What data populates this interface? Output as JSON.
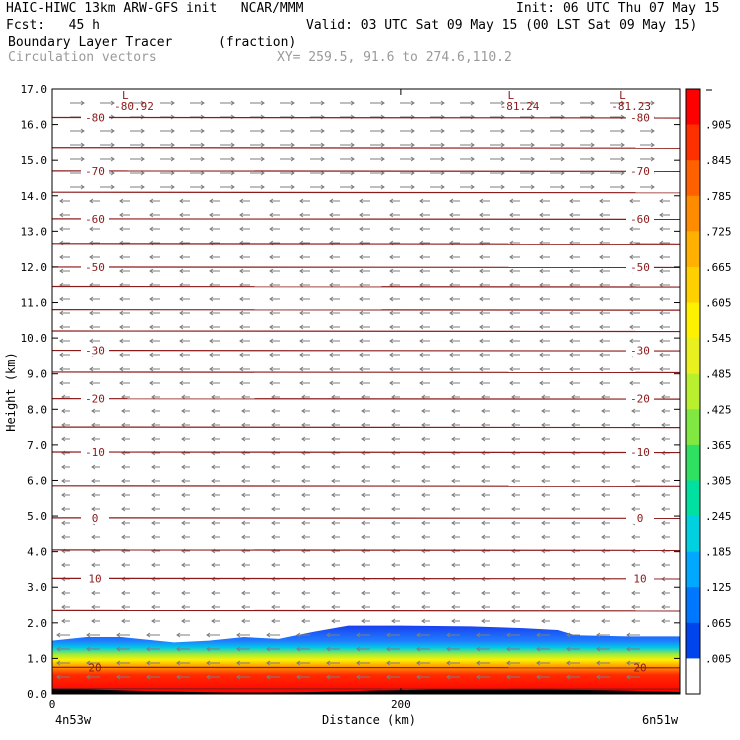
{
  "header": {
    "line1_left": "HAIC-HIWC 13km ARW-GFS init   NCAR/MMM",
    "line1_right": "Init: 06 UTC Thu 07 May 15",
    "line2_left": "Fcst:   45 h",
    "line2_right": "Valid: 03 UTC Sat 09 May 15 (00 LST Sat 09 May 15)",
    "line3_left": "Boundary Layer Tracer",
    "line3_mid": "(fraction)",
    "line4_left": "Circulation vectors",
    "line4_mid": "XY= 259.5, 91.6 to 274.6,110.2"
  },
  "chart_data": {
    "type": "heatmap",
    "ylabel": "Height (km)",
    "xlabel": "Distance (km)",
    "x_endpoints": [
      "4n53w",
      "6n51w"
    ],
    "ylim": [
      0,
      17
    ],
    "xlim": [
      0,
      360
    ],
    "y_ticks": [
      "0.0",
      "1.0",
      "2.0",
      "3.0",
      "4.0",
      "5.0",
      "6.0",
      "7.0",
      "8.0",
      "9.0",
      "10.0",
      "11.0",
      "12.0",
      "13.0",
      "14.0",
      "15.0",
      "16.0",
      "17.0"
    ],
    "x_ticks": [
      "0",
      "200"
    ],
    "colorbar": {
      "labels": [
        ".005",
        ".065",
        ".125",
        ".185",
        ".245",
        ".305",
        ".365",
        ".425",
        ".485",
        ".545",
        ".605",
        ".665",
        ".725",
        ".785",
        ".845",
        ".905"
      ],
      "colors": [
        "#ffffff",
        "#0044ee",
        "#0077ff",
        "#00a8ff",
        "#00d0e0",
        "#00e0a0",
        "#30e060",
        "#80e840",
        "#b8f030",
        "#e8f020",
        "#fff000",
        "#ffd000",
        "#ffb000",
        "#ff8c00",
        "#ff6000",
        "#ff3000",
        "#ff0000"
      ]
    },
    "tracer_top_km": [
      [
        0,
        1.5
      ],
      [
        20,
        1.6
      ],
      [
        40,
        1.6
      ],
      [
        60,
        1.5
      ],
      [
        70,
        1.45
      ],
      [
        90,
        1.5
      ],
      [
        110,
        1.6
      ],
      [
        130,
        1.55
      ],
      [
        150,
        1.75
      ],
      [
        170,
        1.92
      ],
      [
        200,
        1.92
      ],
      [
        240,
        1.9
      ],
      [
        270,
        1.85
      ],
      [
        290,
        1.8
      ],
      [
        300,
        1.65
      ],
      [
        330,
        1.62
      ],
      [
        360,
        1.62
      ]
    ],
    "isotherms_c": [
      {
        "label": "-80",
        "y": 16.2
      },
      {
        "label": "-70",
        "y": 14.7
      },
      {
        "label": "-60",
        "y": 13.35
      },
      {
        "label": "-50",
        "y": 12.0
      },
      {
        "label": "-30",
        "y": 9.65
      },
      {
        "label": "-20",
        "y": 8.3
      },
      {
        "label": "-10",
        "y": 6.8
      },
      {
        "label": "0",
        "y": 4.95
      },
      {
        "label": "10",
        "y": 3.25
      },
      {
        "label": "20",
        "y": 0.75
      }
    ],
    "extra_contours_km": [
      15.35,
      14.1,
      12.65,
      11.45,
      10.8,
      10.2,
      9.05,
      7.5,
      5.85,
      4.05,
      2.35,
      0.15
    ],
    "minima": [
      {
        "mark": "L",
        "value": "-80.92",
        "x": 47
      },
      {
        "mark": "L",
        "value": "-81.24",
        "x": 268
      },
      {
        "mark": "L",
        "value": "-81.23",
        "x": 332
      }
    ],
    "wind_regimes": [
      {
        "from_km": 0,
        "to_km": 2.0,
        "direction": "westward"
      },
      {
        "from_km": 2.0,
        "to_km": 8.5,
        "direction": "westward"
      },
      {
        "from_km": 8.5,
        "to_km": 14.0,
        "direction": "westward"
      },
      {
        "from_km": 14.0,
        "to_km": 17.0,
        "direction": "eastward"
      }
    ]
  }
}
